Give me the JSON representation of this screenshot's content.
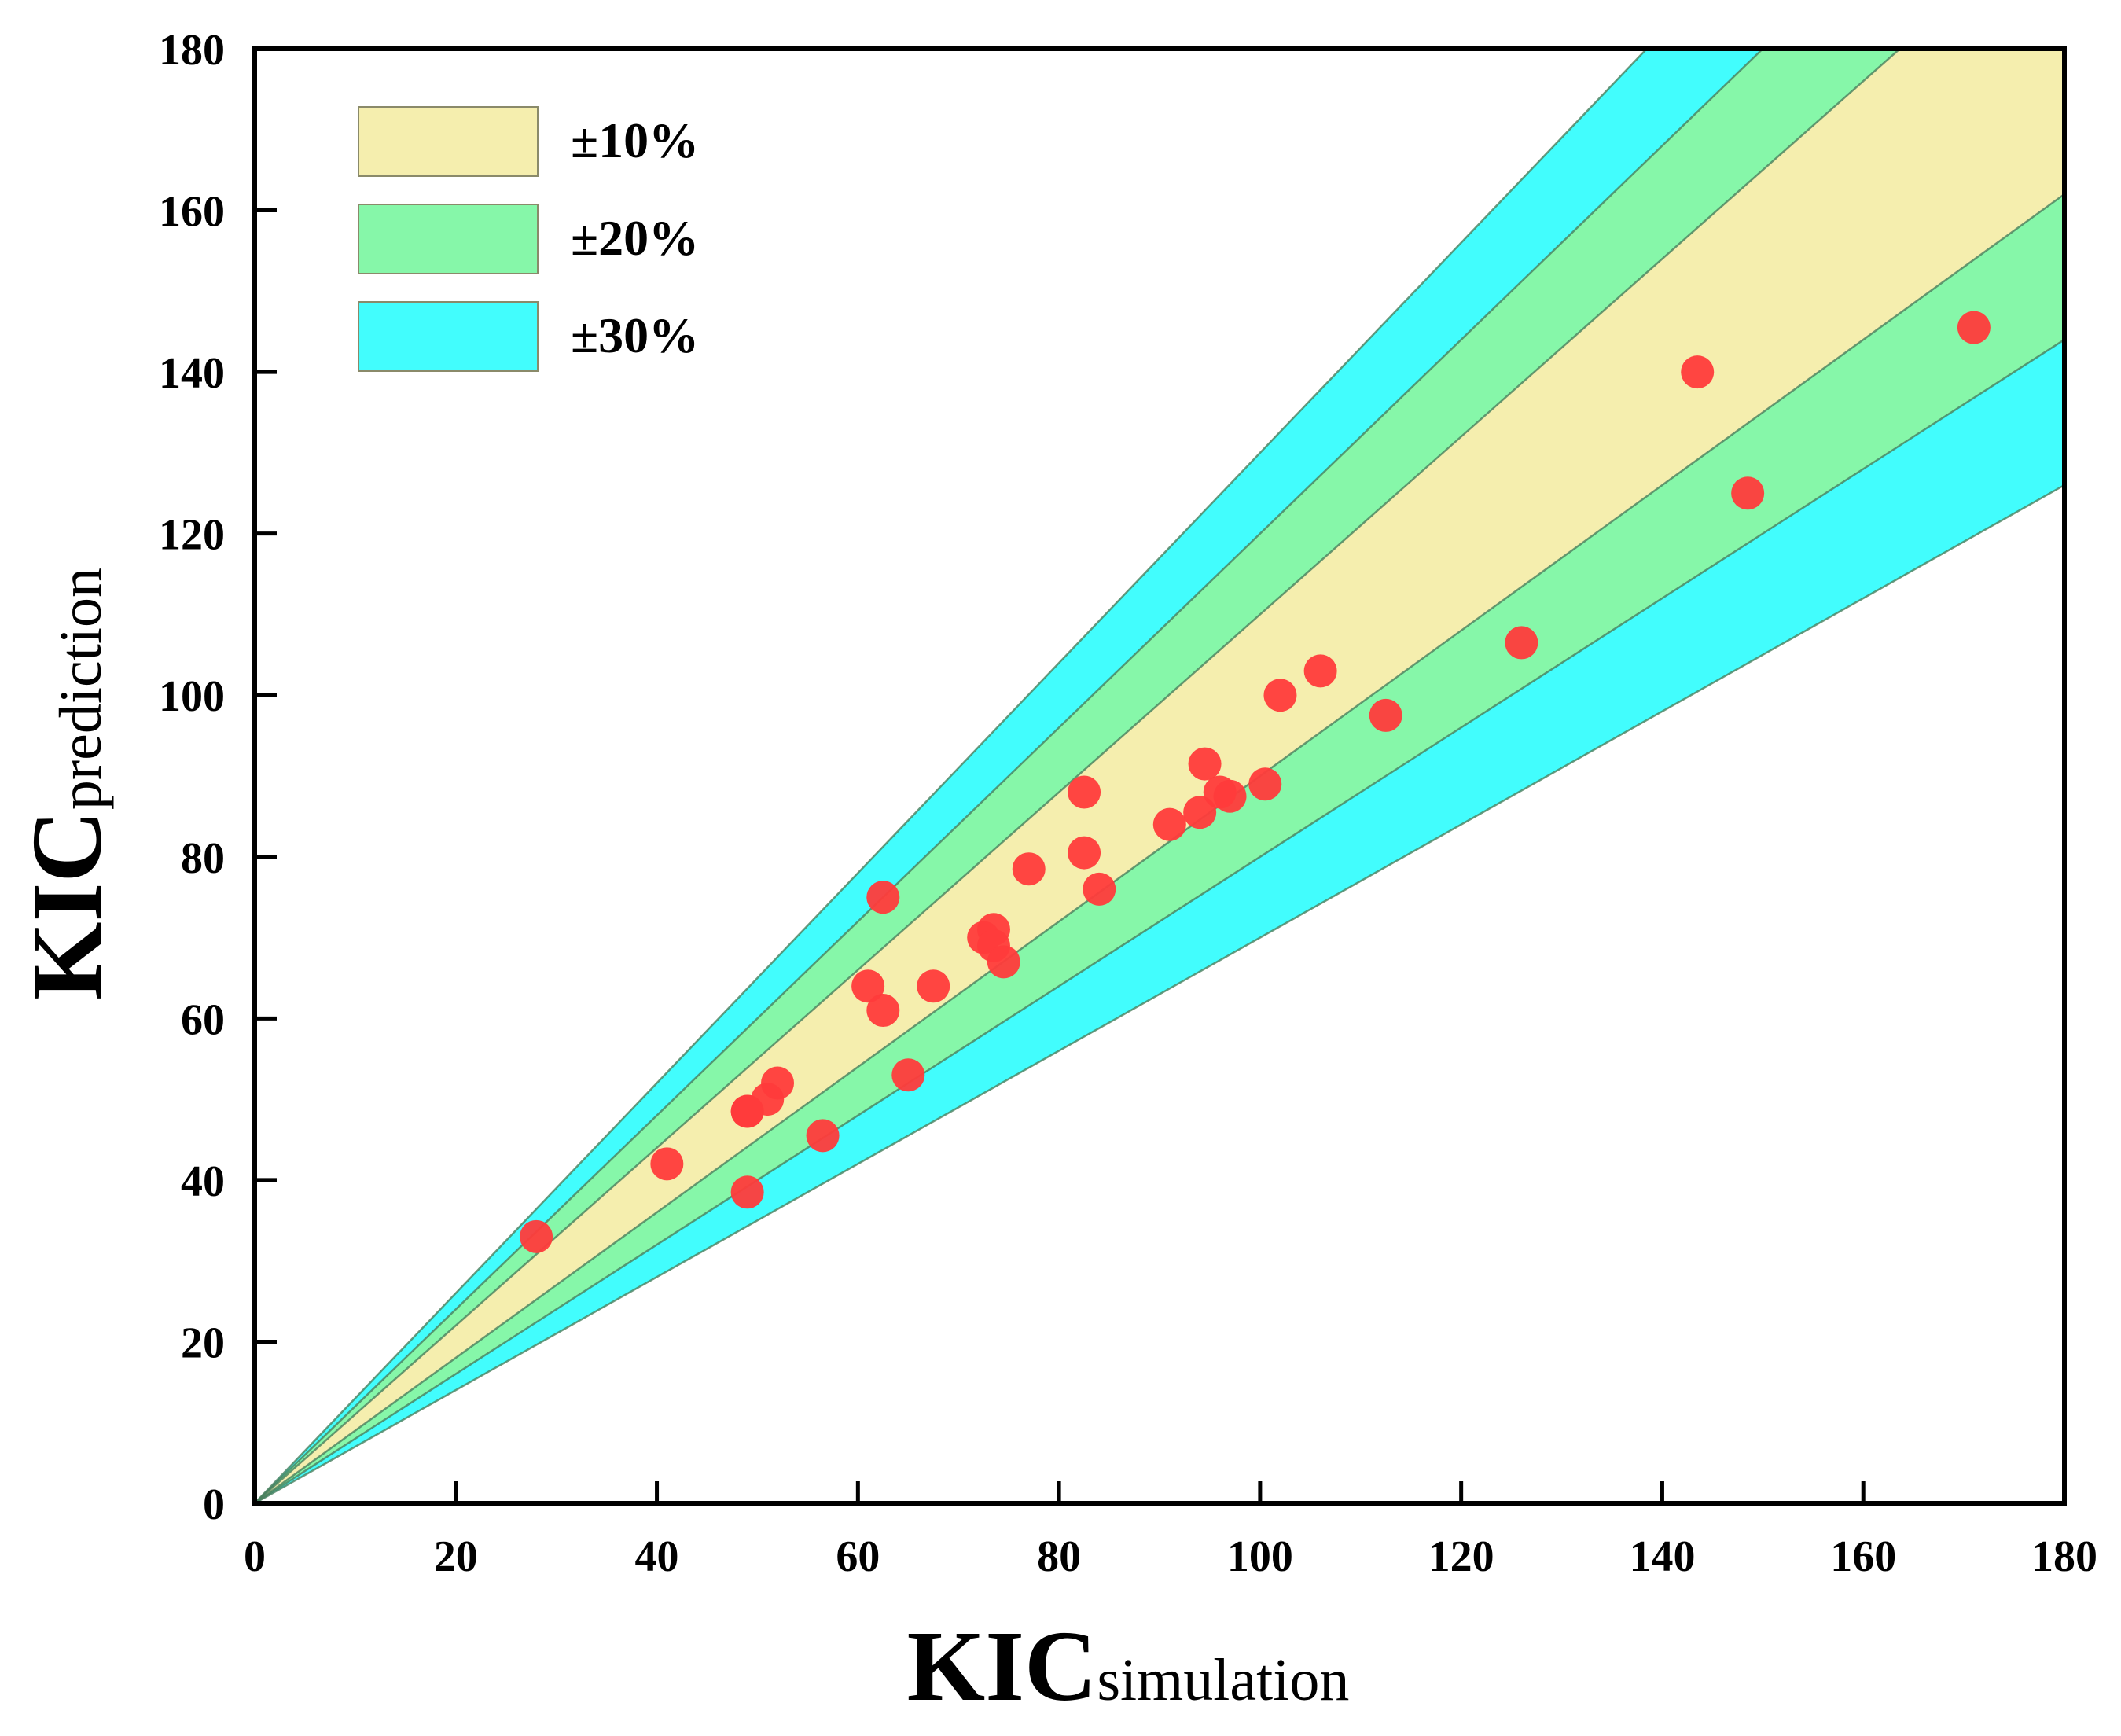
{
  "chart_data": {
    "type": "scatter",
    "xlabel": {
      "main": "KIC",
      "sub": "simulation"
    },
    "ylabel": {
      "main": "KIC",
      "sub": "prediction"
    },
    "xlim": [
      0,
      180
    ],
    "ylim": [
      0,
      180
    ],
    "xticks": [
      "0",
      "20",
      "40",
      "60",
      "80",
      "100",
      "120",
      "140",
      "160",
      "180"
    ],
    "yticks": [
      "0",
      "20",
      "40",
      "60",
      "80",
      "100",
      "120",
      "140",
      "160",
      "180"
    ],
    "grid": false,
    "legend_position": "top-left",
    "bands": [
      {
        "label": "±10%",
        "tolerance": 0.1,
        "color": "#f5eeae"
      },
      {
        "label": "±20%",
        "tolerance": 0.2,
        "color": "#86f7a9"
      },
      {
        "label": "±30%",
        "tolerance": 0.3,
        "color": "#42fdfd"
      }
    ],
    "band_edge_color": "#4a7f5e",
    "point_color": "#ff3b3b",
    "series": [
      {
        "x": [
          28,
          41,
          49,
          49,
          51,
          52,
          49,
          56.5,
          61,
          62.5,
          62.5,
          65,
          67.5,
          72.5,
          73.5,
          73.5,
          74.5,
          77,
          82.5,
          82.5,
          84,
          91,
          94,
          94.5,
          96,
          97,
          100.5,
          102,
          106,
          112.5,
          126,
          143.5,
          148.5,
          171
        ],
        "y": [
          33,
          42,
          48.5,
          38.5,
          50,
          52,
          48.5,
          45.5,
          64,
          75,
          61,
          53,
          64,
          70,
          71,
          69,
          67,
          78.5,
          88,
          80.5,
          76,
          84,
          85.5,
          91.5,
          88,
          87.5,
          89,
          100,
          103,
          97.5,
          106.5,
          140,
          125,
          145.5
        ]
      }
    ]
  }
}
